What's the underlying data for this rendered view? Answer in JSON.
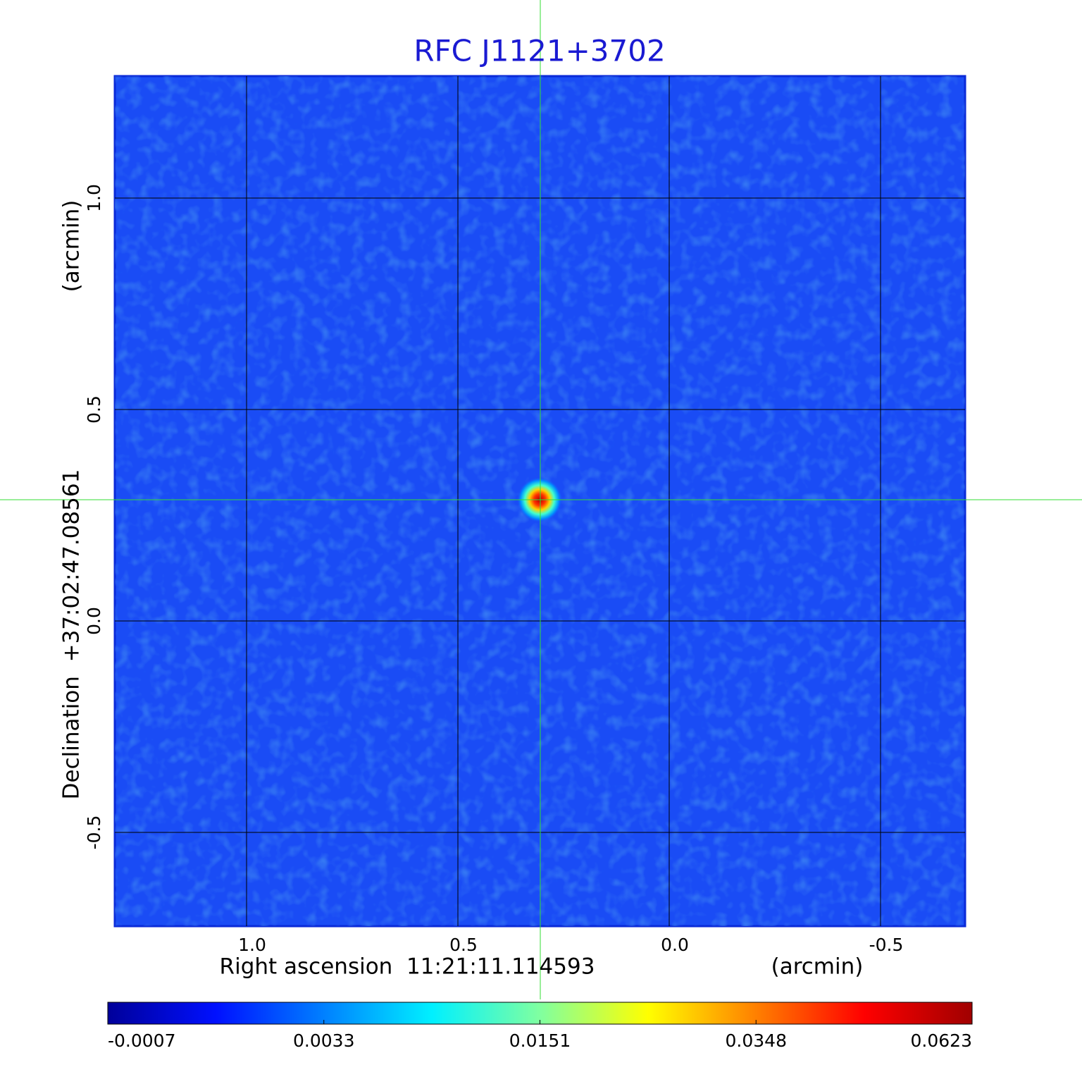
{
  "chart_data": {
    "type": "image",
    "title": "RFC J1121+3702",
    "xlabel": "Right ascension  11:21:11.114593",
    "xunit": "(arcmin)",
    "ylabel": "Declination  +37:02:47.08561",
    "yunit": "(arcmin)",
    "xlim": [
      1.3117,
      -0.7
    ],
    "ylim": [
      -0.7217,
      1.2883
    ],
    "xticks": [
      {
        "value": 1,
        "label": "1.0"
      },
      0.5,
      {
        "value": 0,
        "label": "0.0"
      },
      -0.5
    ],
    "yticks": [
      {
        "value": 1,
        "label": "1.0"
      },
      0.5,
      {
        "value": 0,
        "label": "0.0"
      },
      -0.5
    ],
    "grid": true,
    "grid_color": "#000000",
    "colorbar": {
      "ticks": [
        -0.0007,
        0.0033,
        0.0151,
        0.0348,
        0.0623
      ],
      "colors": [
        "#00009a",
        "#0010ff",
        "#0080ff",
        "#00f0ff",
        "#80ffa0",
        "#ffff00",
        "#ff8000",
        "#ff0000",
        "#a00000"
      ]
    }
  }
}
